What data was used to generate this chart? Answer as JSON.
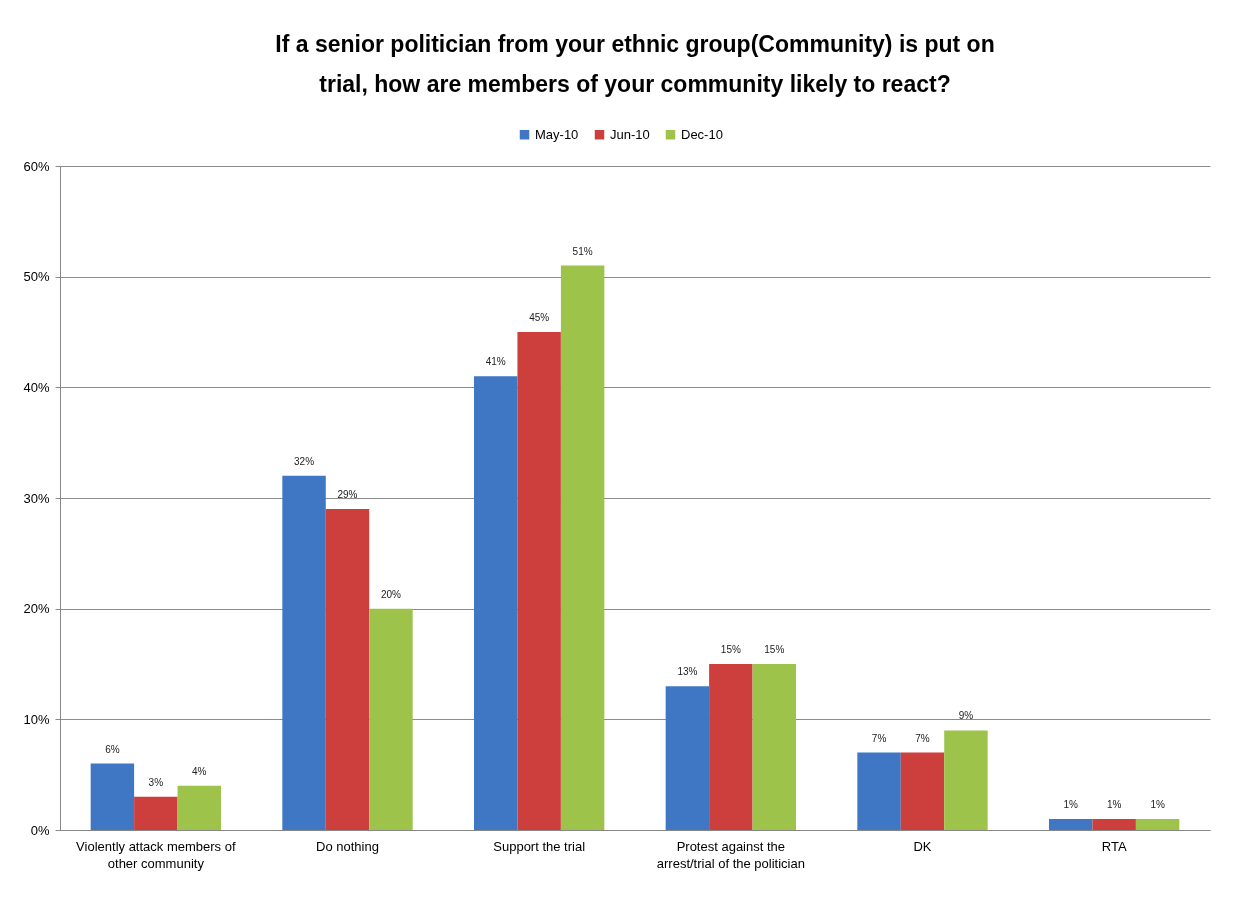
{
  "chart_data": {
    "type": "bar",
    "title": "If a senior politician from your ethnic group(Community) is put on trial, how are members of your community likely to react?",
    "categories": [
      "Violently attack members of other community",
      "Do nothing",
      "Support the trial",
      "Protest against the arrest/trial of the politician",
      "DK",
      "RTA"
    ],
    "series": [
      {
        "name": "May-10",
        "color": "#4077c4",
        "values": [
          6,
          32,
          41,
          13,
          7,
          1
        ],
        "value_labels": [
          "6%",
          "32%",
          "41%",
          "13%",
          "7%",
          "1%"
        ]
      },
      {
        "name": "Jun-10",
        "color": "#cc3f3c",
        "values": [
          3,
          29,
          45,
          15,
          7,
          1
        ],
        "value_labels": [
          "3%",
          "29%",
          "45%",
          "15%",
          "7%",
          "1%"
        ]
      },
      {
        "name": "Dec-10",
        "color": "#9dc34a",
        "values": [
          4,
          20,
          51,
          15,
          9,
          1
        ],
        "value_labels": [
          "4%",
          "20%",
          "51%",
          "15%",
          "9%",
          "1%"
        ]
      }
    ],
    "ylim": [
      0,
      60
    ],
    "yticks": [
      {
        "value": 0,
        "label": "0%"
      },
      {
        "value": 10,
        "label": "10%"
      },
      {
        "value": 20,
        "label": "20%"
      },
      {
        "value": 30,
        "label": "30%"
      },
      {
        "value": 40,
        "label": "40%"
      },
      {
        "value": 50,
        "label": "50%"
      },
      {
        "value": 60,
        "label": "60%"
      }
    ],
    "grid": "y",
    "legend": "top"
  }
}
